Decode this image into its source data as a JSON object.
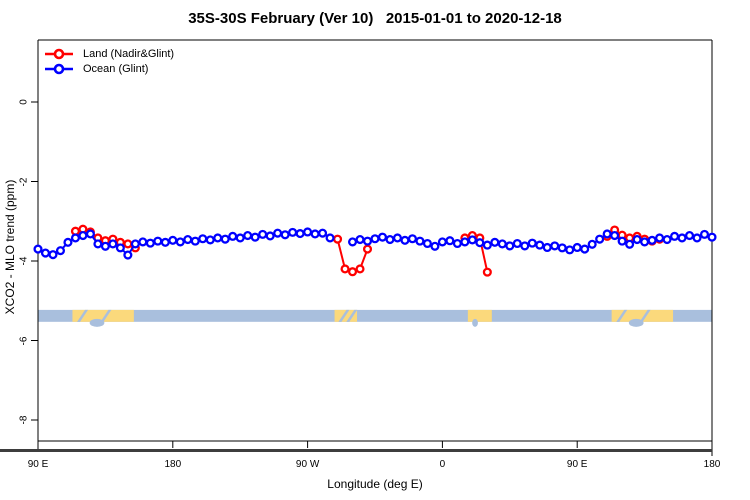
{
  "chart_data": {
    "type": "line",
    "title": "35S-30S February (Ver 10)   2015-01-01 to 2020-12-18",
    "xlabel": "Longitude (deg E)",
    "ylabel": "XCO2 - MLO trend (ppm)",
    "x_axis_note": "Longitude axis wraps eastward from 90E around the globe to 180 (unwrapped 90..540 deg)",
    "xlim_unwrapped": [
      90,
      540
    ],
    "ylim": [
      -8.75,
      1.55
    ],
    "grid": false,
    "legend_position": "top-left",
    "x_ticks": [
      {
        "pos": 90,
        "label": "90 E"
      },
      {
        "pos": 180,
        "label": "180"
      },
      {
        "pos": 270,
        "label": "90 W"
      },
      {
        "pos": 360,
        "label": "0"
      },
      {
        "pos": 450,
        "label": "90 E"
      },
      {
        "pos": 540,
        "label": "180"
      }
    ],
    "y_ticks": [
      {
        "pos": 0,
        "label": "0"
      },
      {
        "pos": -2,
        "label": "-2"
      },
      {
        "pos": -4,
        "label": "-4"
      },
      {
        "pos": -6,
        "label": "-6"
      },
      {
        "pos": -8,
        "label": "-8"
      }
    ],
    "series": [
      {
        "name": "Land (Nadir&Glint)",
        "color": "#FF0000",
        "marker": "open-circle",
        "segments": [
          [
            [
              115,
              -3.25
            ],
            [
              120,
              -3.2
            ],
            [
              125,
              -3.27
            ],
            [
              130,
              -3.42
            ],
            [
              135,
              -3.49
            ],
            [
              140,
              -3.45
            ],
            [
              145,
              -3.53
            ],
            [
              150,
              -3.57
            ],
            [
              155,
              -3.67
            ]
          ],
          [
            [
              290,
              -3.45
            ],
            [
              295,
              -4.2
            ],
            [
              300,
              -4.27
            ],
            [
              305,
              -4.2
            ],
            [
              310,
              -3.7
            ]
          ],
          [
            [
              375,
              -3.42
            ],
            [
              380,
              -3.36
            ],
            [
              385,
              -3.42
            ],
            [
              390,
              -4.28
            ]
          ],
          [
            [
              470,
              -3.38
            ],
            [
              475,
              -3.22
            ],
            [
              480,
              -3.35
            ],
            [
              485,
              -3.42
            ],
            [
              490,
              -3.38
            ],
            [
              495,
              -3.45
            ],
            [
              500,
              -3.5
            ],
            [
              505,
              -3.45
            ]
          ]
        ]
      },
      {
        "name": "Ocean (Glint)",
        "color": "#0000FF",
        "marker": "open-circle",
        "segments": [
          [
            [
              90,
              -3.7
            ],
            [
              95,
              -3.8
            ],
            [
              100,
              -3.84
            ],
            [
              105,
              -3.74
            ],
            [
              110,
              -3.53
            ],
            [
              115,
              -3.42
            ],
            [
              120,
              -3.36
            ],
            [
              125,
              -3.32
            ],
            [
              130,
              -3.57
            ],
            [
              135,
              -3.63
            ],
            [
              140,
              -3.57
            ],
            [
              145,
              -3.67
            ],
            [
              150,
              -3.85
            ],
            [
              155,
              -3.57
            ],
            [
              160,
              -3.52
            ],
            [
              165,
              -3.55
            ],
            [
              170,
              -3.5
            ],
            [
              175,
              -3.53
            ],
            [
              180,
              -3.48
            ],
            [
              185,
              -3.52
            ],
            [
              190,
              -3.46
            ],
            [
              195,
              -3.5
            ],
            [
              200,
              -3.44
            ],
            [
              205,
              -3.47
            ],
            [
              210,
              -3.42
            ],
            [
              215,
              -3.45
            ],
            [
              220,
              -3.38
            ],
            [
              225,
              -3.42
            ],
            [
              230,
              -3.36
            ],
            [
              235,
              -3.4
            ],
            [
              240,
              -3.33
            ],
            [
              245,
              -3.37
            ],
            [
              250,
              -3.3
            ],
            [
              255,
              -3.34
            ],
            [
              260,
              -3.28
            ],
            [
              265,
              -3.31
            ],
            [
              270,
              -3.27
            ],
            [
              275,
              -3.32
            ],
            [
              280,
              -3.3
            ],
            [
              285,
              -3.42
            ]
          ],
          [
            [
              300,
              -3.52
            ],
            [
              305,
              -3.46
            ],
            [
              310,
              -3.5
            ],
            [
              315,
              -3.44
            ],
            [
              320,
              -3.4
            ],
            [
              325,
              -3.46
            ],
            [
              330,
              -3.42
            ],
            [
              335,
              -3.48
            ],
            [
              340,
              -3.44
            ],
            [
              345,
              -3.5
            ],
            [
              350,
              -3.56
            ],
            [
              355,
              -3.63
            ],
            [
              360,
              -3.52
            ],
            [
              365,
              -3.49
            ],
            [
              370,
              -3.56
            ],
            [
              375,
              -3.52
            ],
            [
              380,
              -3.47
            ],
            [
              385,
              -3.54
            ],
            [
              390,
              -3.6
            ],
            [
              395,
              -3.53
            ],
            [
              400,
              -3.57
            ],
            [
              405,
              -3.62
            ],
            [
              410,
              -3.56
            ],
            [
              415,
              -3.62
            ],
            [
              420,
              -3.55
            ],
            [
              425,
              -3.6
            ],
            [
              430,
              -3.66
            ],
            [
              435,
              -3.62
            ],
            [
              440,
              -3.67
            ],
            [
              445,
              -3.72
            ],
            [
              450,
              -3.66
            ],
            [
              455,
              -3.7
            ],
            [
              460,
              -3.58
            ],
            [
              465,
              -3.45
            ],
            [
              470,
              -3.32
            ],
            [
              475,
              -3.36
            ],
            [
              480,
              -3.5
            ],
            [
              485,
              -3.58
            ],
            [
              490,
              -3.46
            ],
            [
              495,
              -3.52
            ],
            [
              500,
              -3.48
            ],
            [
              505,
              -3.42
            ],
            [
              510,
              -3.46
            ],
            [
              515,
              -3.38
            ],
            [
              520,
              -3.42
            ],
            [
              525,
              -3.36
            ],
            [
              530,
              -3.42
            ],
            [
              535,
              -3.33
            ],
            [
              540,
              -3.4
            ]
          ]
        ]
      }
    ],
    "map_strip": {
      "description": "world map band for latitude 35S-30S drawn across the plot",
      "value_top": -5.23,
      "value_bottom": -5.53,
      "ocean_color": "#A9BFDD",
      "land_color": "#FBD97C",
      "land_patches": [
        {
          "name": "australia",
          "from": 113,
          "to": 154,
          "slashes": [
            0.14,
            0.52
          ],
          "bight": 0.4
        },
        {
          "name": "south-america",
          "from": 288,
          "to": 303,
          "slashes": [
            0.35,
            0.7
          ],
          "bight": null
        },
        {
          "name": "south-africa",
          "from": 377,
          "to": 393,
          "slashes": [],
          "bight": 0.3
        },
        {
          "name": "australia-repeat",
          "from": 473,
          "to": 514,
          "slashes": [
            0.14,
            0.52
          ],
          "bight": 0.4
        }
      ]
    },
    "axis_colors": {
      "box": "#000000",
      "thick_baseline": "#3D3D3D"
    }
  }
}
